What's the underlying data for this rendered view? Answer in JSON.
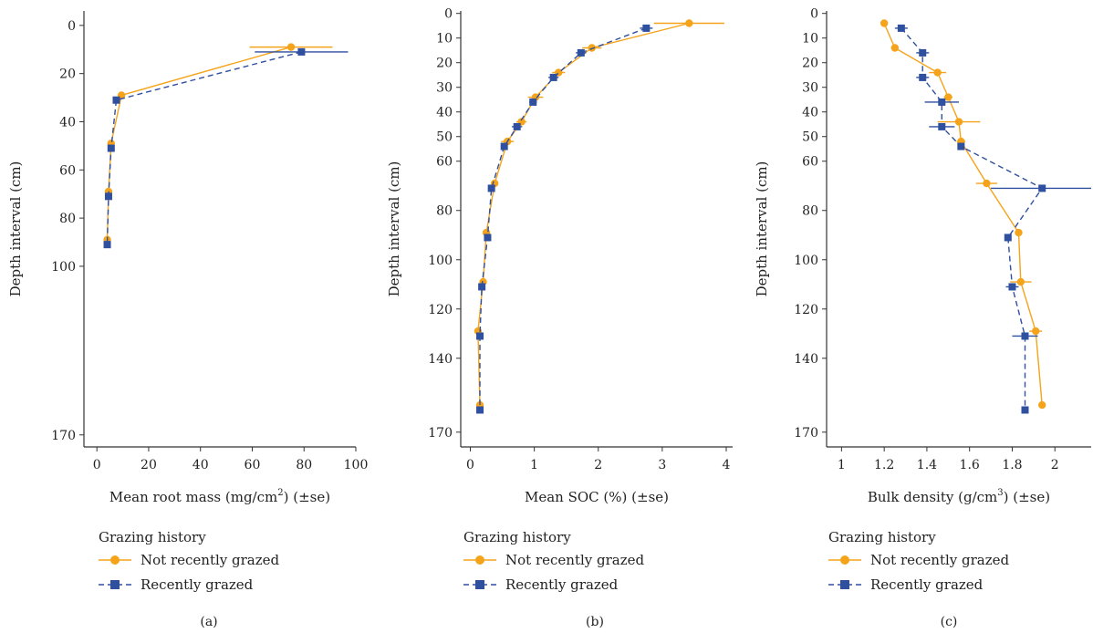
{
  "colors": {
    "not_grazed": "#f5a31a",
    "grazed": "#2f4f9f"
  },
  "legend_title": "Grazing history",
  "chart_data": [
    {
      "type": "line",
      "panel_label": "(a)",
      "xlabel_pre": "Mean root mass (mg/cm",
      "xlabel_sup": "2",
      "xlabel_post": ") (±se)",
      "ylabel": "Depth interval (cm)",
      "xlim": [
        -5,
        100
      ],
      "ylim": [
        175,
        -6
      ],
      "xticks": [
        0,
        20,
        40,
        60,
        80,
        100
      ],
      "yticks": [
        0,
        20,
        40,
        60,
        80,
        100,
        170
      ],
      "y_reversed": true,
      "grid": false,
      "legend_position": "below",
      "series": [
        {
          "name": "Not recently grazed",
          "marker": "circle",
          "line": "solid",
          "points": [
            {
              "x": 75,
              "y": 9,
              "xerr": 16
            },
            {
              "x": 9.5,
              "y": 29,
              "xerr": 1
            },
            {
              "x": 5.5,
              "y": 49,
              "xerr": 0.5
            },
            {
              "x": 4.5,
              "y": 69,
              "xerr": 0.5
            },
            {
              "x": 4,
              "y": 89,
              "xerr": 0.5
            }
          ]
        },
        {
          "name": "Recently grazed",
          "marker": "square",
          "line": "dashed",
          "points": [
            {
              "x": 79,
              "y": 11,
              "xerr": 18
            },
            {
              "x": 7.5,
              "y": 31,
              "xerr": 1
            },
            {
              "x": 5.5,
              "y": 51,
              "xerr": 0.5
            },
            {
              "x": 4.5,
              "y": 71,
              "xerr": 0.5
            },
            {
              "x": 4,
              "y": 91,
              "xerr": 0.5
            }
          ]
        }
      ]
    },
    {
      "type": "line",
      "panel_label": "(b)",
      "xlabel_pre": "Mean SOC (%) (±se)",
      "xlabel_sup": "",
      "xlabel_post": "",
      "ylabel": "Depth interval (cm)",
      "xlim": [
        -0.15,
        4.1
      ],
      "ylim": [
        176,
        -1
      ],
      "xticks": [
        0,
        1,
        2,
        3,
        4
      ],
      "yticks": [
        0,
        10,
        20,
        30,
        40,
        50,
        60,
        80,
        100,
        120,
        140,
        170
      ],
      "y_reversed": true,
      "grid": false,
      "legend_position": "below",
      "series": [
        {
          "name": "Not recently grazed",
          "marker": "circle",
          "line": "solid",
          "points": [
            {
              "x": 3.42,
              "y": 4,
              "xerr": 0.55
            },
            {
              "x": 1.9,
              "y": 14,
              "xerr": 0.15
            },
            {
              "x": 1.38,
              "y": 24,
              "xerr": 0.1
            },
            {
              "x": 1.02,
              "y": 34,
              "xerr": 0.12
            },
            {
              "x": 0.8,
              "y": 44,
              "xerr": 0.08
            },
            {
              "x": 0.58,
              "y": 52,
              "xerr": 0.1
            },
            {
              "x": 0.38,
              "y": 69,
              "xerr": 0.05
            },
            {
              "x": 0.25,
              "y": 89,
              "xerr": 0.03
            },
            {
              "x": 0.2,
              "y": 109,
              "xerr": 0.03
            },
            {
              "x": 0.12,
              "y": 129,
              "xerr": 0.02
            },
            {
              "x": 0.15,
              "y": 159,
              "xerr": 0.02
            }
          ]
        },
        {
          "name": "Recently grazed",
          "marker": "square",
          "line": "dashed",
          "points": [
            {
              "x": 2.75,
              "y": 6,
              "xerr": 0.1
            },
            {
              "x": 1.73,
              "y": 16,
              "xerr": 0.08
            },
            {
              "x": 1.3,
              "y": 26,
              "xerr": 0.08
            },
            {
              "x": 0.98,
              "y": 36,
              "xerr": 0.06
            },
            {
              "x": 0.73,
              "y": 46,
              "xerr": 0.08
            },
            {
              "x": 0.53,
              "y": 54,
              "xerr": 0.05
            },
            {
              "x": 0.33,
              "y": 71,
              "xerr": 0.04
            },
            {
              "x": 0.27,
              "y": 91,
              "xerr": 0.03
            },
            {
              "x": 0.18,
              "y": 111,
              "xerr": 0.02
            },
            {
              "x": 0.15,
              "y": 131,
              "xerr": 0.02
            },
            {
              "x": 0.15,
              "y": 161,
              "xerr": 0.02
            }
          ]
        }
      ]
    },
    {
      "type": "line",
      "panel_label": "(c)",
      "xlabel_pre": "Bulk density (g/cm",
      "xlabel_sup": "3",
      "xlabel_post": ") (±se)",
      "ylabel": "Depth interval (cm)",
      "xlim": [
        0.93,
        2.17
      ],
      "ylim": [
        176,
        -1
      ],
      "xticks": [
        1.0,
        1.2,
        1.4,
        1.6,
        1.8,
        2.0
      ],
      "yticks": [
        0,
        10,
        20,
        30,
        40,
        50,
        60,
        80,
        100,
        120,
        140,
        170
      ],
      "y_reversed": true,
      "grid": false,
      "legend_position": "below",
      "series": [
        {
          "name": "Not recently grazed",
          "marker": "circle",
          "line": "solid",
          "points": [
            {
              "x": 1.2,
              "y": 4,
              "xerr": 0.01
            },
            {
              "x": 1.25,
              "y": 14,
              "xerr": 0.01
            },
            {
              "x": 1.45,
              "y": 24,
              "xerr": 0.04
            },
            {
              "x": 1.5,
              "y": 34,
              "xerr": 0.02
            },
            {
              "x": 1.55,
              "y": 44,
              "xerr": 0.1
            },
            {
              "x": 1.56,
              "y": 52,
              "xerr": 0.02
            },
            {
              "x": 1.68,
              "y": 69,
              "xerr": 0.05
            },
            {
              "x": 1.83,
              "y": 89,
              "xerr": 0.01
            },
            {
              "x": 1.84,
              "y": 109,
              "xerr": 0.05
            },
            {
              "x": 1.91,
              "y": 129,
              "xerr": 0.03
            },
            {
              "x": 1.94,
              "y": 159,
              "xerr": 0.01
            }
          ]
        },
        {
          "name": "Recently grazed",
          "marker": "square",
          "line": "dashed",
          "points": [
            {
              "x": 1.28,
              "y": 6,
              "xerr": 0.03
            },
            {
              "x": 1.38,
              "y": 16,
              "xerr": 0.03
            },
            {
              "x": 1.38,
              "y": 26,
              "xerr": 0.03
            },
            {
              "x": 1.47,
              "y": 36,
              "xerr": 0.08
            },
            {
              "x": 1.47,
              "y": 46,
              "xerr": 0.06
            },
            {
              "x": 1.56,
              "y": 54,
              "xerr": 0.01
            },
            {
              "x": 1.94,
              "y": 71,
              "xerr": 0.24
            },
            {
              "x": 1.78,
              "y": 91,
              "xerr": 0.01
            },
            {
              "x": 1.8,
              "y": 111,
              "xerr": 0.03
            },
            {
              "x": 1.86,
              "y": 131,
              "xerr": 0.06
            },
            {
              "x": 1.86,
              "y": 161,
              "xerr": 0.01
            }
          ]
        }
      ]
    }
  ]
}
